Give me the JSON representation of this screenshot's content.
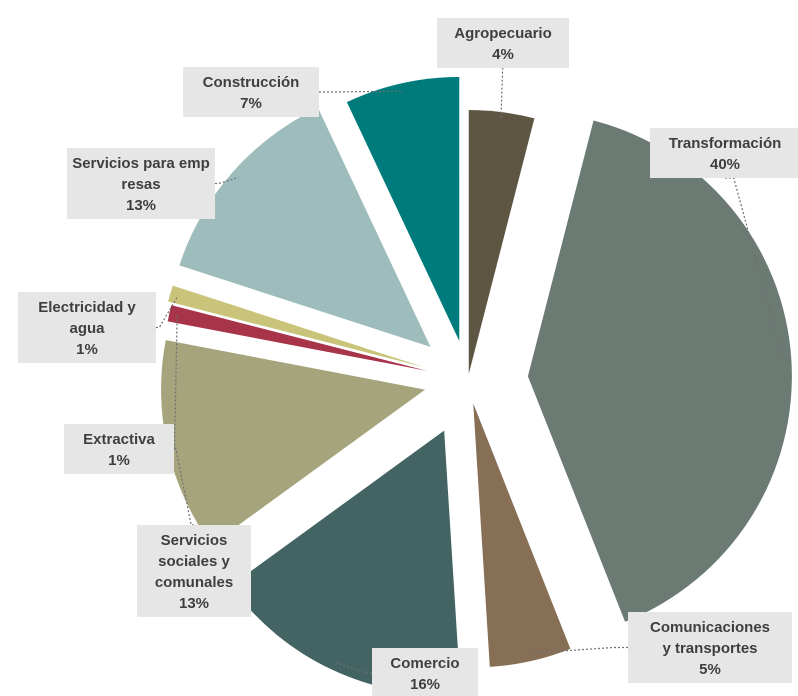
{
  "chart_data": {
    "type": "pie",
    "title": "",
    "exploded": true,
    "slices": [
      {
        "label": "Agropecuario",
        "value": 4,
        "value_label": "4%",
        "color": "#5e5543"
      },
      {
        "label": "Transformación",
        "value": 40,
        "value_label": "40%",
        "color": "#6b7b73"
      },
      {
        "label": "Comunicaciones y transportes",
        "value": 5,
        "value_label": "5%",
        "color": "#876f56"
      },
      {
        "label": "Comercio",
        "value": 16,
        "value_label": "16%",
        "color": "#436463"
      },
      {
        "label": "Servicios sociales y comunales",
        "value": 13,
        "value_label": "13%",
        "color": "#a6a47c"
      },
      {
        "label": "Extractiva",
        "value": 1,
        "value_label": "1%",
        "color": "#a8344a"
      },
      {
        "label": "Electricidad y agua",
        "value": 1,
        "value_label": "1%",
        "color": "#c9c47a"
      },
      {
        "label": "Servicios para empresas",
        "value": 13,
        "value_label": "13%",
        "color": "#9dbcbb"
      },
      {
        "label": "Construcción",
        "value": 7,
        "value_label": "7%",
        "color": "#007b7b"
      }
    ]
  }
}
